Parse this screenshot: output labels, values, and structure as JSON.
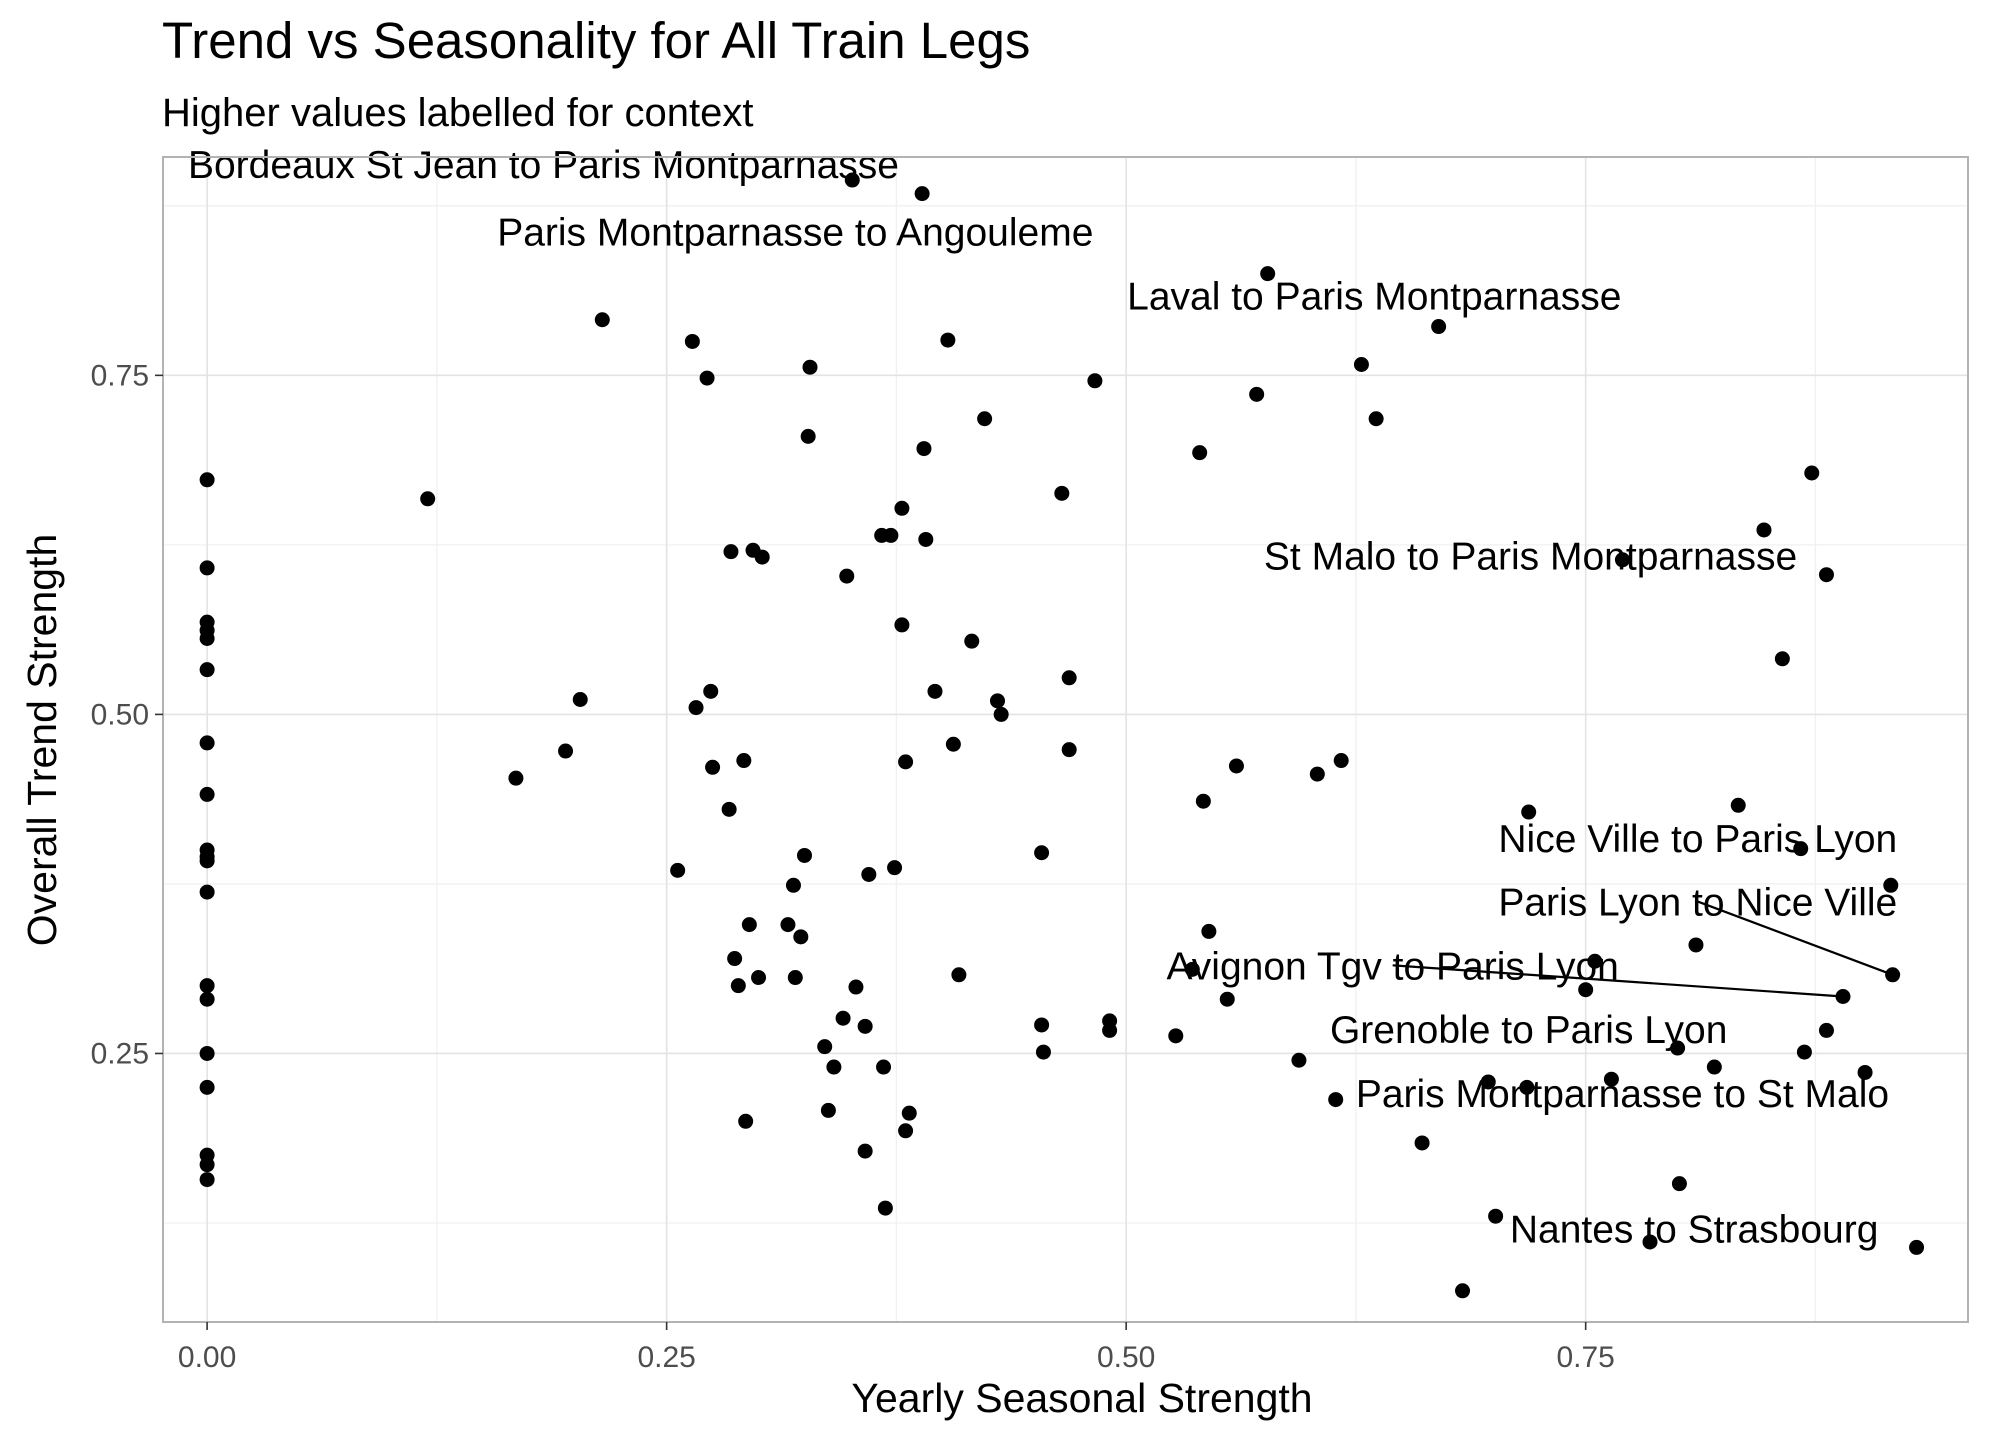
{
  "chart_data": {
    "type": "scatter",
    "title": "Trend vs Seasonality for All Train Legs",
    "subtitle": "Higher values labelled for context",
    "xlabel": "Yearly Seasonal Strength",
    "ylabel": "Overall Trend Strength",
    "xlim": [
      -0.024,
      0.958
    ],
    "ylim": [
      0.052,
      0.911
    ],
    "xticks": [
      0.0,
      0.25,
      0.5,
      0.75
    ],
    "xtick_labels": [
      "0.00",
      "0.25",
      "0.50",
      "0.75"
    ],
    "yticks": [
      0.25,
      0.5,
      0.75
    ],
    "ytick_labels": [
      "0.25",
      "0.50",
      "0.75"
    ],
    "grid": true,
    "legend": "none",
    "points": [
      {
        "x": 0.0,
        "y": 0.673
      },
      {
        "x": 0.0,
        "y": 0.608
      },
      {
        "x": 0.0,
        "y": 0.568
      },
      {
        "x": 0.0,
        "y": 0.562
      },
      {
        "x": 0.0,
        "y": 0.556
      },
      {
        "x": 0.0,
        "y": 0.533
      },
      {
        "x": 0.0,
        "y": 0.479
      },
      {
        "x": 0.0,
        "y": 0.441
      },
      {
        "x": 0.0,
        "y": 0.4
      },
      {
        "x": 0.0,
        "y": 0.395
      },
      {
        "x": 0.0,
        "y": 0.392
      },
      {
        "x": 0.0,
        "y": 0.369
      },
      {
        "x": 0.0,
        "y": 0.3
      },
      {
        "x": 0.0,
        "y": 0.29
      },
      {
        "x": 0.0,
        "y": 0.25
      },
      {
        "x": 0.0,
        "y": 0.225
      },
      {
        "x": 0.0,
        "y": 0.175
      },
      {
        "x": 0.0,
        "y": 0.168
      },
      {
        "x": 0.0,
        "y": 0.157
      },
      {
        "x": 0.12,
        "y": 0.659
      },
      {
        "x": 0.168,
        "y": 0.453
      },
      {
        "x": 0.195,
        "y": 0.473
      },
      {
        "x": 0.203,
        "y": 0.511
      },
      {
        "x": 0.215,
        "y": 0.791
      },
      {
        "x": 0.256,
        "y": 0.385
      },
      {
        "x": 0.264,
        "y": 0.775
      },
      {
        "x": 0.266,
        "y": 0.505
      },
      {
        "x": 0.272,
        "y": 0.748
      },
      {
        "x": 0.274,
        "y": 0.517
      },
      {
        "x": 0.275,
        "y": 0.461
      },
      {
        "x": 0.284,
        "y": 0.43
      },
      {
        "x": 0.285,
        "y": 0.62
      },
      {
        "x": 0.287,
        "y": 0.32
      },
      {
        "x": 0.289,
        "y": 0.3
      },
      {
        "x": 0.292,
        "y": 0.466
      },
      {
        "x": 0.293,
        "y": 0.2
      },
      {
        "x": 0.295,
        "y": 0.345
      },
      {
        "x": 0.297,
        "y": 0.621
      },
      {
        "x": 0.3,
        "y": 0.306
      },
      {
        "x": 0.302,
        "y": 0.616
      },
      {
        "x": 0.316,
        "y": 0.345
      },
      {
        "x": 0.319,
        "y": 0.374
      },
      {
        "x": 0.32,
        "y": 0.306
      },
      {
        "x": 0.323,
        "y": 0.336
      },
      {
        "x": 0.325,
        "y": 0.396
      },
      {
        "x": 0.327,
        "y": 0.705
      },
      {
        "x": 0.328,
        "y": 0.756
      },
      {
        "x": 0.336,
        "y": 0.255
      },
      {
        "x": 0.338,
        "y": 0.208
      },
      {
        "x": 0.341,
        "y": 0.24
      },
      {
        "x": 0.346,
        "y": 0.276
      },
      {
        "x": 0.348,
        "y": 0.602
      },
      {
        "x": 0.351,
        "y": 0.894
      },
      {
        "x": 0.353,
        "y": 0.299
      },
      {
        "x": 0.358,
        "y": 0.27
      },
      {
        "x": 0.358,
        "y": 0.178
      },
      {
        "x": 0.36,
        "y": 0.382
      },
      {
        "x": 0.367,
        "y": 0.632
      },
      {
        "x": 0.368,
        "y": 0.24
      },
      {
        "x": 0.369,
        "y": 0.136
      },
      {
        "x": 0.372,
        "y": 0.632
      },
      {
        "x": 0.374,
        "y": 0.387
      },
      {
        "x": 0.378,
        "y": 0.566
      },
      {
        "x": 0.378,
        "y": 0.652
      },
      {
        "x": 0.38,
        "y": 0.465
      },
      {
        "x": 0.38,
        "y": 0.193
      },
      {
        "x": 0.382,
        "y": 0.206
      },
      {
        "x": 0.389,
        "y": 0.884
      },
      {
        "x": 0.39,
        "y": 0.696
      },
      {
        "x": 0.391,
        "y": 0.629
      },
      {
        "x": 0.396,
        "y": 0.517
      },
      {
        "x": 0.403,
        "y": 0.776
      },
      {
        "x": 0.406,
        "y": 0.478
      },
      {
        "x": 0.409,
        "y": 0.308
      },
      {
        "x": 0.416,
        "y": 0.554
      },
      {
        "x": 0.423,
        "y": 0.718
      },
      {
        "x": 0.43,
        "y": 0.51
      },
      {
        "x": 0.432,
        "y": 0.5
      },
      {
        "x": 0.454,
        "y": 0.398
      },
      {
        "x": 0.454,
        "y": 0.271
      },
      {
        "x": 0.455,
        "y": 0.251
      },
      {
        "x": 0.465,
        "y": 0.663
      },
      {
        "x": 0.469,
        "y": 0.527
      },
      {
        "x": 0.469,
        "y": 0.474
      },
      {
        "x": 0.483,
        "y": 0.746
      },
      {
        "x": 0.491,
        "y": 0.274
      },
      {
        "x": 0.491,
        "y": 0.267
      },
      {
        "x": 0.527,
        "y": 0.263
      },
      {
        "x": 0.536,
        "y": 0.312
      },
      {
        "x": 0.54,
        "y": 0.693
      },
      {
        "x": 0.542,
        "y": 0.436
      },
      {
        "x": 0.545,
        "y": 0.34
      },
      {
        "x": 0.555,
        "y": 0.29
      },
      {
        "x": 0.56,
        "y": 0.462
      },
      {
        "x": 0.571,
        "y": 0.736
      },
      {
        "x": 0.577,
        "y": 0.825
      },
      {
        "x": 0.594,
        "y": 0.245
      },
      {
        "x": 0.604,
        "y": 0.456
      },
      {
        "x": 0.614,
        "y": 0.216
      },
      {
        "x": 0.617,
        "y": 0.466
      },
      {
        "x": 0.628,
        "y": 0.758
      },
      {
        "x": 0.636,
        "y": 0.718
      },
      {
        "x": 0.661,
        "y": 0.184
      },
      {
        "x": 0.67,
        "y": 0.786
      },
      {
        "x": 0.683,
        "y": 0.075
      },
      {
        "x": 0.697,
        "y": 0.229
      },
      {
        "x": 0.701,
        "y": 0.13
      },
      {
        "x": 0.718,
        "y": 0.225
      },
      {
        "x": 0.719,
        "y": 0.428
      },
      {
        "x": 0.75,
        "y": 0.297
      },
      {
        "x": 0.755,
        "y": 0.318
      },
      {
        "x": 0.764,
        "y": 0.231
      },
      {
        "x": 0.77,
        "y": 0.614
      },
      {
        "x": 0.785,
        "y": 0.111
      },
      {
        "x": 0.8,
        "y": 0.254
      },
      {
        "x": 0.801,
        "y": 0.154
      },
      {
        "x": 0.81,
        "y": 0.33
      },
      {
        "x": 0.82,
        "y": 0.24
      },
      {
        "x": 0.833,
        "y": 0.433
      },
      {
        "x": 0.847,
        "y": 0.636
      },
      {
        "x": 0.857,
        "y": 0.541
      },
      {
        "x": 0.867,
        "y": 0.401
      },
      {
        "x": 0.869,
        "y": 0.251
      },
      {
        "x": 0.873,
        "y": 0.678
      },
      {
        "x": 0.881,
        "y": 0.603
      },
      {
        "x": 0.881,
        "y": 0.267
      },
      {
        "x": 0.89,
        "y": 0.292
      },
      {
        "x": 0.902,
        "y": 0.236
      },
      {
        "x": 0.916,
        "y": 0.374
      },
      {
        "x": 0.917,
        "y": 0.308
      },
      {
        "x": 0.93,
        "y": 0.107
      }
    ],
    "annotations": [
      {
        "text": "Bordeaux St Jean to Paris Montparnasse",
        "x": 0.351,
        "y": 0.894,
        "lx": 0.183,
        "ly": 0.906,
        "anchor": "middle"
      },
      {
        "text": "Paris Montparnasse to Angouleme",
        "x": 0.389,
        "y": 0.884,
        "lx": 0.32,
        "ly": 0.856,
        "anchor": "middle"
      },
      {
        "text": "Laval to Paris Montparnasse",
        "x": 0.67,
        "y": 0.786,
        "lx": 0.635,
        "ly": 0.809,
        "anchor": "middle"
      },
      {
        "text": "St Malo to Paris Montparnasse",
        "x": 0.881,
        "y": 0.603,
        "lx": 0.72,
        "ly": 0.617,
        "anchor": "middle"
      },
      {
        "text": "Nice Ville to Paris Lyon",
        "x": 0.916,
        "y": 0.374,
        "lx": 0.811,
        "ly": 0.409,
        "anchor": "middle"
      },
      {
        "text": "Paris Lyon to Nice Ville",
        "x": 0.917,
        "y": 0.308,
        "lx": 0.811,
        "ly": 0.362,
        "anchor": "middle",
        "line": true
      },
      {
        "text": "Avignon Tgv to Paris Lyon",
        "x": 0.89,
        "y": 0.292,
        "lx": 0.645,
        "ly": 0.315,
        "anchor": "middle",
        "line": true
      },
      {
        "text": "Grenoble to Paris Lyon",
        "x": 0.82,
        "y": 0.24,
        "lx": 0.719,
        "ly": 0.268,
        "anchor": "middle"
      },
      {
        "text": "Paris Montparnasse to St Malo",
        "x": 0.902,
        "y": 0.236,
        "lx": 0.77,
        "ly": 0.221,
        "anchor": "middle"
      },
      {
        "text": "Nantes to Strasbourg",
        "x": 0.93,
        "y": 0.107,
        "lx": 0.809,
        "ly": 0.121,
        "anchor": "middle"
      }
    ]
  }
}
